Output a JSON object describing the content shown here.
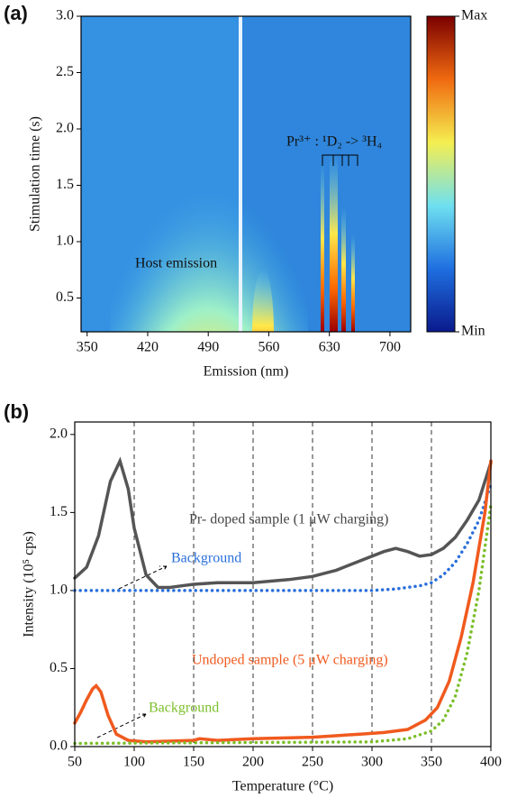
{
  "chart_data": [
    {
      "type": "heatmap",
      "panel_label": "(a)",
      "x_label": "Emission (nm)",
      "y_label": "Stimulation time (s)",
      "xlim": [
        343,
        724
      ],
      "xticks": [
        350,
        420,
        490,
        560,
        630,
        700
      ],
      "ylim": [
        0.2,
        3.0
      ],
      "yticks": [
        0.5,
        {
          "value": 1,
          "label": "1.0"
        },
        1.5,
        {
          "value": 2,
          "label": "2.0"
        },
        2.5,
        {
          "value": 3,
          "label": "3.0"
        }
      ],
      "colorbar_labels": [
        "Max",
        "Min"
      ],
      "annotations": [
        "Host emission",
        "Pr³⁺ : ¹D₂ -> ³H₄"
      ]
    },
    {
      "type": "line",
      "panel_label": "(b)",
      "x_label": "Temperature (°C)",
      "y_label": "Intensity (10⁵ cps)",
      "xlim": [
        50,
        400
      ],
      "xticks": [
        50,
        100,
        150,
        200,
        250,
        300,
        350,
        400
      ],
      "ylim": [
        0,
        2.08
      ],
      "yticks": [
        {
          "value": 0,
          "label": "0.0"
        },
        0.5,
        {
          "value": 1,
          "label": "1.0"
        },
        1.5,
        {
          "value": 2,
          "label": "2.0"
        }
      ],
      "grid": true,
      "series": [
        {
          "name": "Pr- doped sample (1 μW charging)",
          "color": "#555555",
          "style": "solid",
          "x": [
            50,
            60,
            70,
            80,
            88,
            95,
            100,
            110,
            120,
            130,
            140,
            150,
            170,
            200,
            230,
            250,
            270,
            290,
            310,
            320,
            330,
            340,
            350,
            360,
            370,
            380,
            390,
            400
          ],
          "values": [
            1.08,
            1.15,
            1.35,
            1.7,
            1.83,
            1.65,
            1.4,
            1.1,
            1.02,
            1.02,
            1.03,
            1.04,
            1.05,
            1.05,
            1.07,
            1.09,
            1.13,
            1.19,
            1.25,
            1.27,
            1.25,
            1.22,
            1.23,
            1.27,
            1.34,
            1.45,
            1.58,
            1.82
          ]
        },
        {
          "name": "Background",
          "color": "#2a6fdb",
          "style": "dotted",
          "x": [
            50,
            300,
            320,
            340,
            350,
            360,
            370,
            380,
            390,
            400
          ],
          "values": [
            1.0,
            1.0,
            1.01,
            1.03,
            1.05,
            1.1,
            1.18,
            1.3,
            1.45,
            1.68
          ]
        },
        {
          "name": "Undoped sample (5 μW charging)",
          "color": "#f05a1e",
          "style": "solid",
          "x": [
            50,
            55,
            60,
            65,
            68,
            72,
            78,
            85,
            95,
            110,
            150,
            155,
            170,
            200,
            250,
            290,
            310,
            330,
            345,
            355,
            365,
            375,
            385,
            395,
            400
          ],
          "values": [
            0.15,
            0.22,
            0.3,
            0.37,
            0.39,
            0.35,
            0.2,
            0.08,
            0.04,
            0.03,
            0.04,
            0.05,
            0.04,
            0.05,
            0.06,
            0.08,
            0.09,
            0.11,
            0.17,
            0.25,
            0.42,
            0.7,
            1.05,
            1.5,
            1.83
          ]
        },
        {
          "name": "Background",
          "color": "#7cbf2a",
          "style": "dotted",
          "x": [
            50,
            300,
            330,
            350,
            360,
            370,
            380,
            390,
            400
          ],
          "values": [
            0.02,
            0.03,
            0.05,
            0.1,
            0.17,
            0.32,
            0.6,
            1.0,
            1.55
          ]
        }
      ]
    }
  ]
}
